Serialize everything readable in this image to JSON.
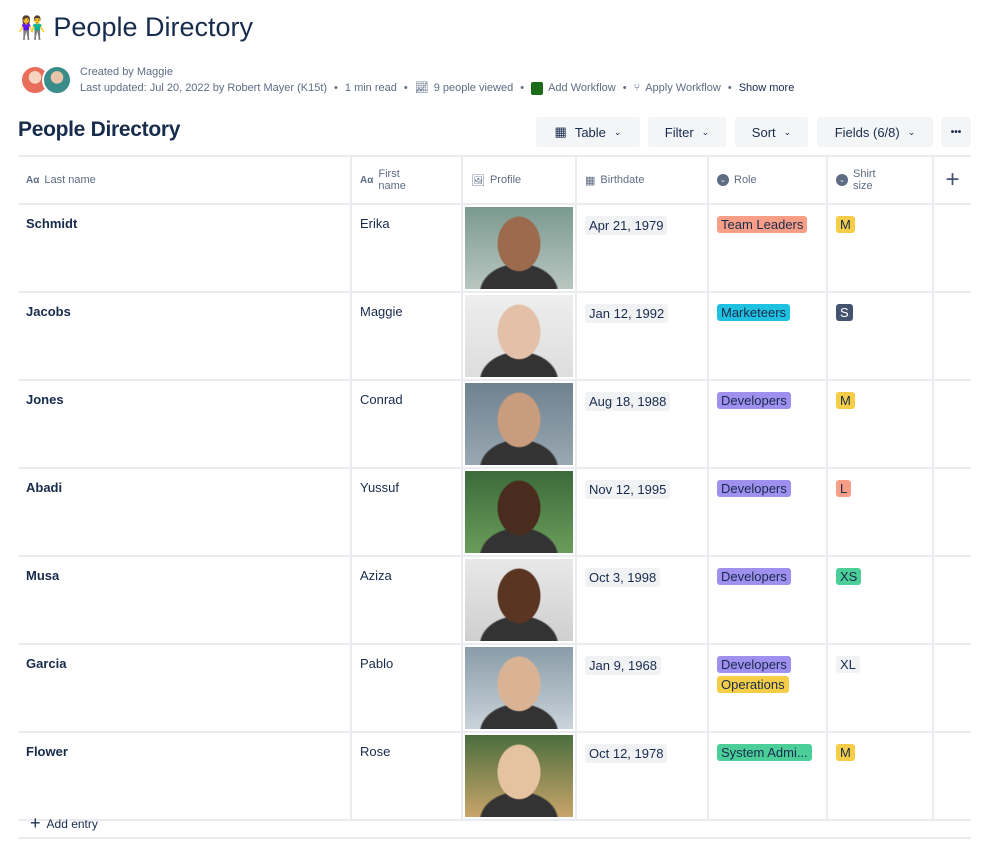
{
  "page": {
    "emoji": "👫",
    "title": "People Directory"
  },
  "meta": {
    "created": "Created by Maggie",
    "updated": "Last updated: Jul 20, 2022 by Robert Mayer (K15t)",
    "read": "1 min read",
    "viewed": "9 people viewed",
    "add_workflow": "Add Workflow",
    "apply_workflow": "Apply Workflow",
    "show_more": "Show more"
  },
  "db": {
    "title": "People Directory",
    "table": "Table",
    "filter": "Filter",
    "sort": "Sort",
    "fields": "Fields (6/8)",
    "more": "•••"
  },
  "columns": {
    "last": "Last name",
    "first": "First name",
    "profile": "Profile",
    "birth": "Birthdate",
    "role": "Role",
    "shirt": "Shirt size",
    "aa": "Aα",
    "add": "+"
  },
  "colors": {
    "Team Leaders": "#f99e86",
    "Marketeers": "#1fc1e0",
    "Developers": "#9f8fef",
    "Operations": "#f5cd47",
    "System Admi...": "#4bce97",
    "M": "#f5cd47",
    "S": "#44546f",
    "L": "#f99e86",
    "XS": "#4bce97",
    "XL": "#f1f2f4"
  },
  "rows": [
    {
      "last": "Schmidt",
      "first": "Erika",
      "birth": "Apr 21, 1979",
      "roles": [
        "Team Leaders"
      ],
      "shirt": "M"
    },
    {
      "last": "Jacobs",
      "first": "Maggie",
      "birth": "Jan 12, 1992",
      "roles": [
        "Marketeers"
      ],
      "shirt": "S"
    },
    {
      "last": "Jones",
      "first": "Conrad",
      "birth": "Aug 18, 1988",
      "roles": [
        "Developers"
      ],
      "shirt": "M"
    },
    {
      "last": "Abadi",
      "first": "Yussuf",
      "birth": "Nov 12, 1995",
      "roles": [
        "Developers"
      ],
      "shirt": "L"
    },
    {
      "last": "Musa",
      "first": "Aziza",
      "birth": "Oct 3, 1998",
      "roles": [
        "Developers"
      ],
      "shirt": "XS"
    },
    {
      "last": "Garcia",
      "first": "Pablo",
      "birth": "Jan 9, 1968",
      "roles": [
        "Developers",
        "Operations"
      ],
      "shirt": "XL"
    },
    {
      "last": "Flower",
      "first": "Rose",
      "birth": "Oct 12, 1978",
      "roles": [
        "System Admi..."
      ],
      "shirt": "M"
    }
  ],
  "add_entry": "Add entry"
}
